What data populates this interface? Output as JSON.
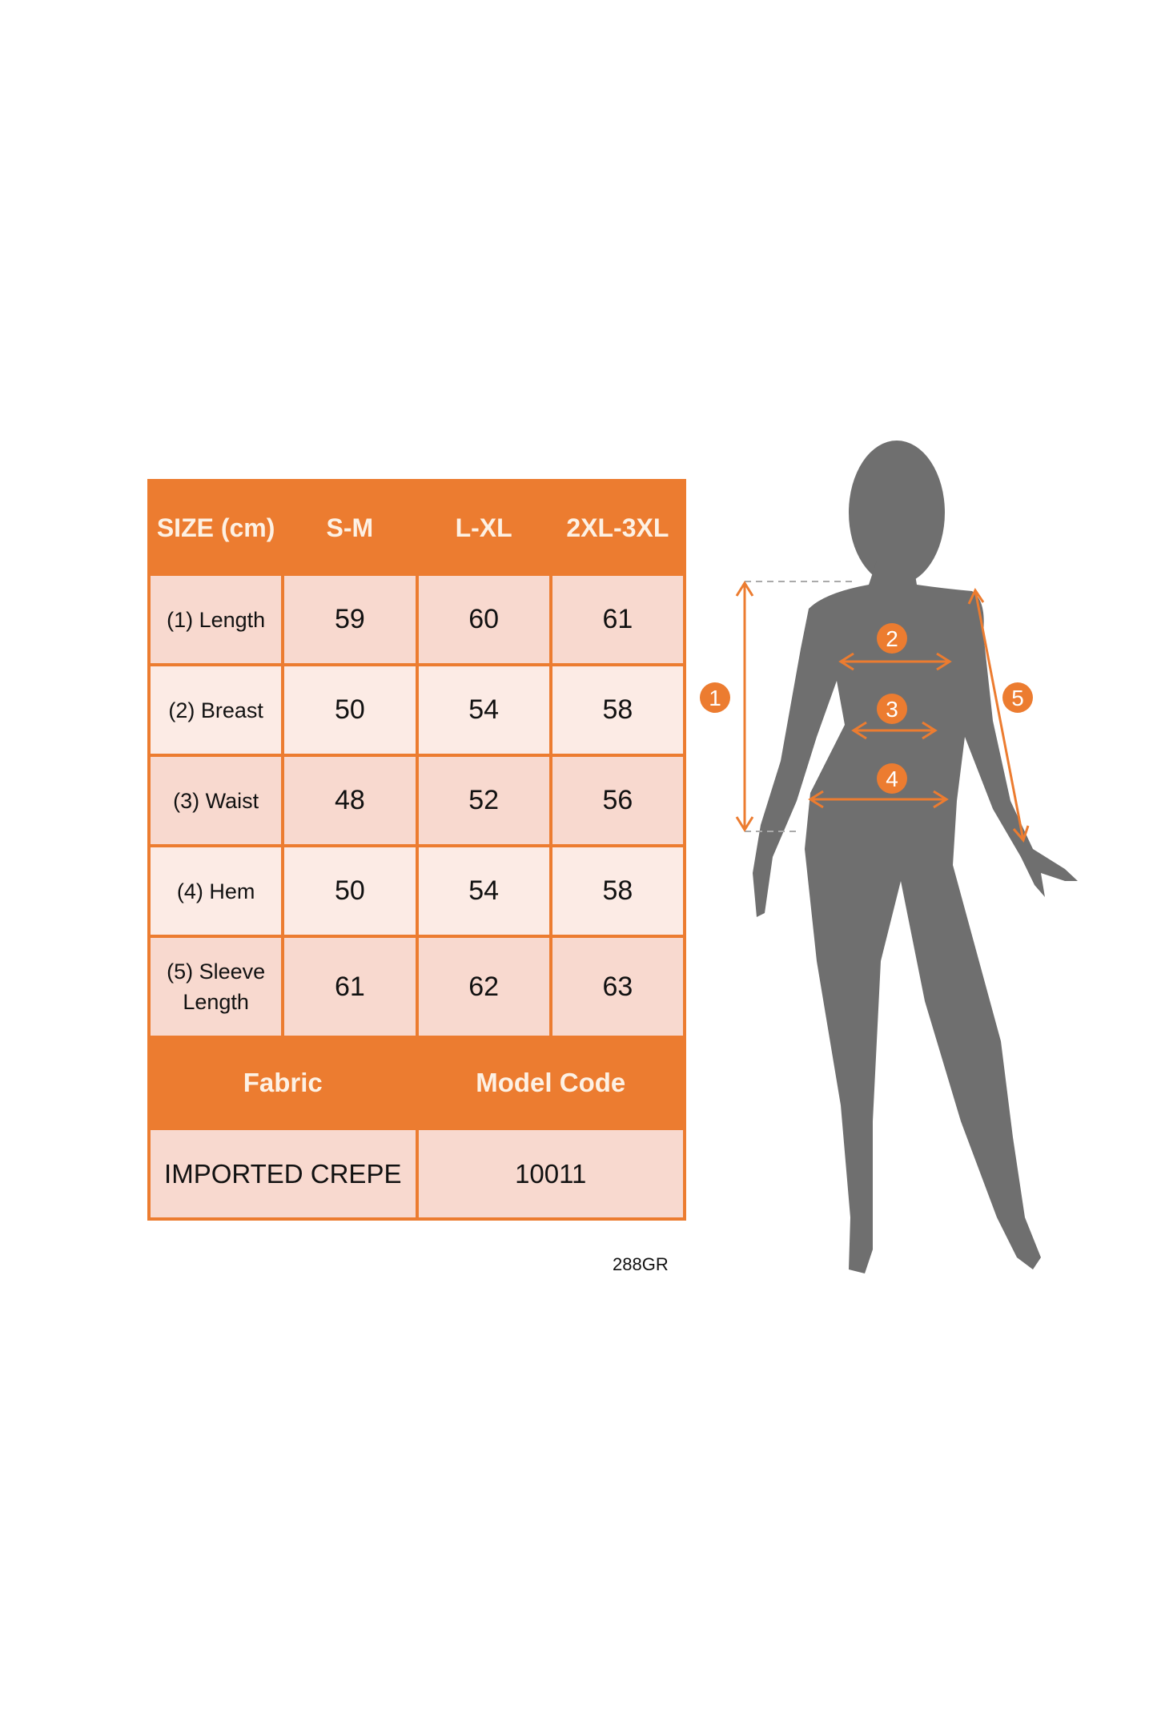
{
  "table": {
    "header": [
      "SIZE (cm)",
      "S-M",
      "L-XL",
      "2XL-3XL"
    ],
    "rows": [
      {
        "label": "(1) Length",
        "values": [
          "59",
          "60",
          "61"
        ]
      },
      {
        "label": "(2) Breast",
        "values": [
          "50",
          "54",
          "58"
        ]
      },
      {
        "label": "(3) Waist",
        "values": [
          "48",
          "52",
          "56"
        ]
      },
      {
        "label": "(4) Hem",
        "values": [
          "50",
          "54",
          "58"
        ]
      },
      {
        "label": "(5) Sleeve Length",
        "values": [
          "61",
          "62",
          "63"
        ]
      }
    ],
    "info_header": [
      "Fabric",
      "Model Code"
    ],
    "info_values": [
      "IMPORTED CREPE",
      "10011"
    ]
  },
  "product_code": "288GR",
  "figure": {
    "markers": [
      "1",
      "2",
      "3",
      "4",
      "5"
    ]
  },
  "colors": {
    "accent": "#ec7c30",
    "row_odd": "#f8d9cf",
    "row_even": "#fcebe5",
    "silhouette": "#6f6f6f"
  }
}
